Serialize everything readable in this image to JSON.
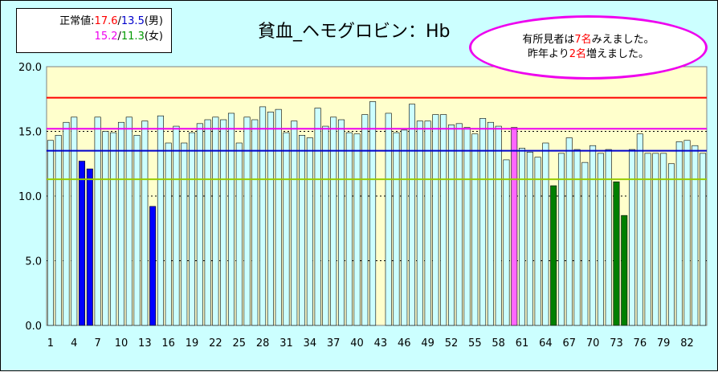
{
  "title": "貧血_ヘモグロビン：Hb",
  "legend": {
    "label": "正常値:",
    "male_upper": "17.6",
    "male_lower": "13.5",
    "male_suffix": "(男)",
    "female_upper": "15.2",
    "female_lower": "11.3",
    "female_suffix": "(女)",
    "sep": "/"
  },
  "callout": {
    "line1_pre": "有所見者は",
    "line1_num": "7名",
    "line1_post": "みえました。",
    "line2_pre": "昨年より",
    "line2_num": "2名",
    "line2_post": "増えました。"
  },
  "colors": {
    "background": "#ccffff",
    "plot_band": "#ffffcc",
    "bar_normal": "#ccffff",
    "bar_male_low": "#0000ff",
    "bar_female_low": "#008000",
    "bar_magenta": "#ff66ff",
    "line_male_upper": "#ff0000",
    "line_male_lower": "#0000cc",
    "line_female_upper": "#ee00ee",
    "line_female_lower": "#99cc00"
  },
  "chart_data": {
    "type": "bar",
    "title": "貧血_ヘモグロビン：Hb",
    "ylim": [
      0,
      20
    ],
    "yticks": [
      "0.0",
      "5.0",
      "10.0",
      "15.0",
      "20.0"
    ],
    "xticks": [
      "1",
      "4",
      "7",
      "10",
      "13",
      "16",
      "19",
      "22",
      "25",
      "28",
      "31",
      "34",
      "37",
      "40",
      "43",
      "46",
      "49",
      "52",
      "55",
      "58",
      "61",
      "64",
      "67",
      "70",
      "73",
      "76",
      "79",
      "82"
    ],
    "reference_lines": [
      {
        "label": "17.6",
        "value": 17.6,
        "color": "#ff0000"
      },
      {
        "label": "15.2",
        "value": 15.2,
        "color": "#ee00ee"
      },
      {
        "label": "13.5",
        "value": 13.5,
        "color": "#0000cc"
      },
      {
        "label": "11.3",
        "value": 11.3,
        "color": "#99cc00"
      }
    ],
    "values": [
      14.3,
      14.7,
      15.7,
      16.1,
      12.7,
      12.1,
      16.1,
      15.0,
      14.9,
      15.7,
      16.1,
      14.7,
      15.8,
      9.2,
      16.2,
      14.1,
      15.4,
      14.1,
      14.9,
      15.6,
      15.9,
      16.1,
      15.9,
      16.4,
      14.1,
      16.1,
      15.9,
      16.9,
      16.5,
      16.7,
      14.9,
      15.8,
      14.7,
      14.5,
      16.8,
      15.4,
      16.1,
      15.9,
      14.9,
      14.8,
      16.3,
      17.3,
      null,
      16.4,
      14.9,
      15.1,
      17.1,
      15.8,
      15.8,
      16.3,
      16.3,
      15.5,
      15.6,
      15.3,
      14.8,
      16.0,
      15.7,
      15.4,
      12.8,
      15.3,
      13.7,
      13.4,
      13.0,
      14.1,
      10.8,
      13.3,
      14.5,
      13.6,
      12.6,
      13.9,
      13.3,
      13.6,
      11.1,
      8.5,
      13.6,
      14.8,
      13.3,
      13.3,
      13.3,
      12.5,
      14.2,
      14.3,
      13.9,
      13.3
    ],
    "highlight": {
      "male_low": [
        5,
        6,
        14
      ],
      "female_low": [
        65,
        73,
        74
      ],
      "magenta": [
        60
      ]
    }
  }
}
